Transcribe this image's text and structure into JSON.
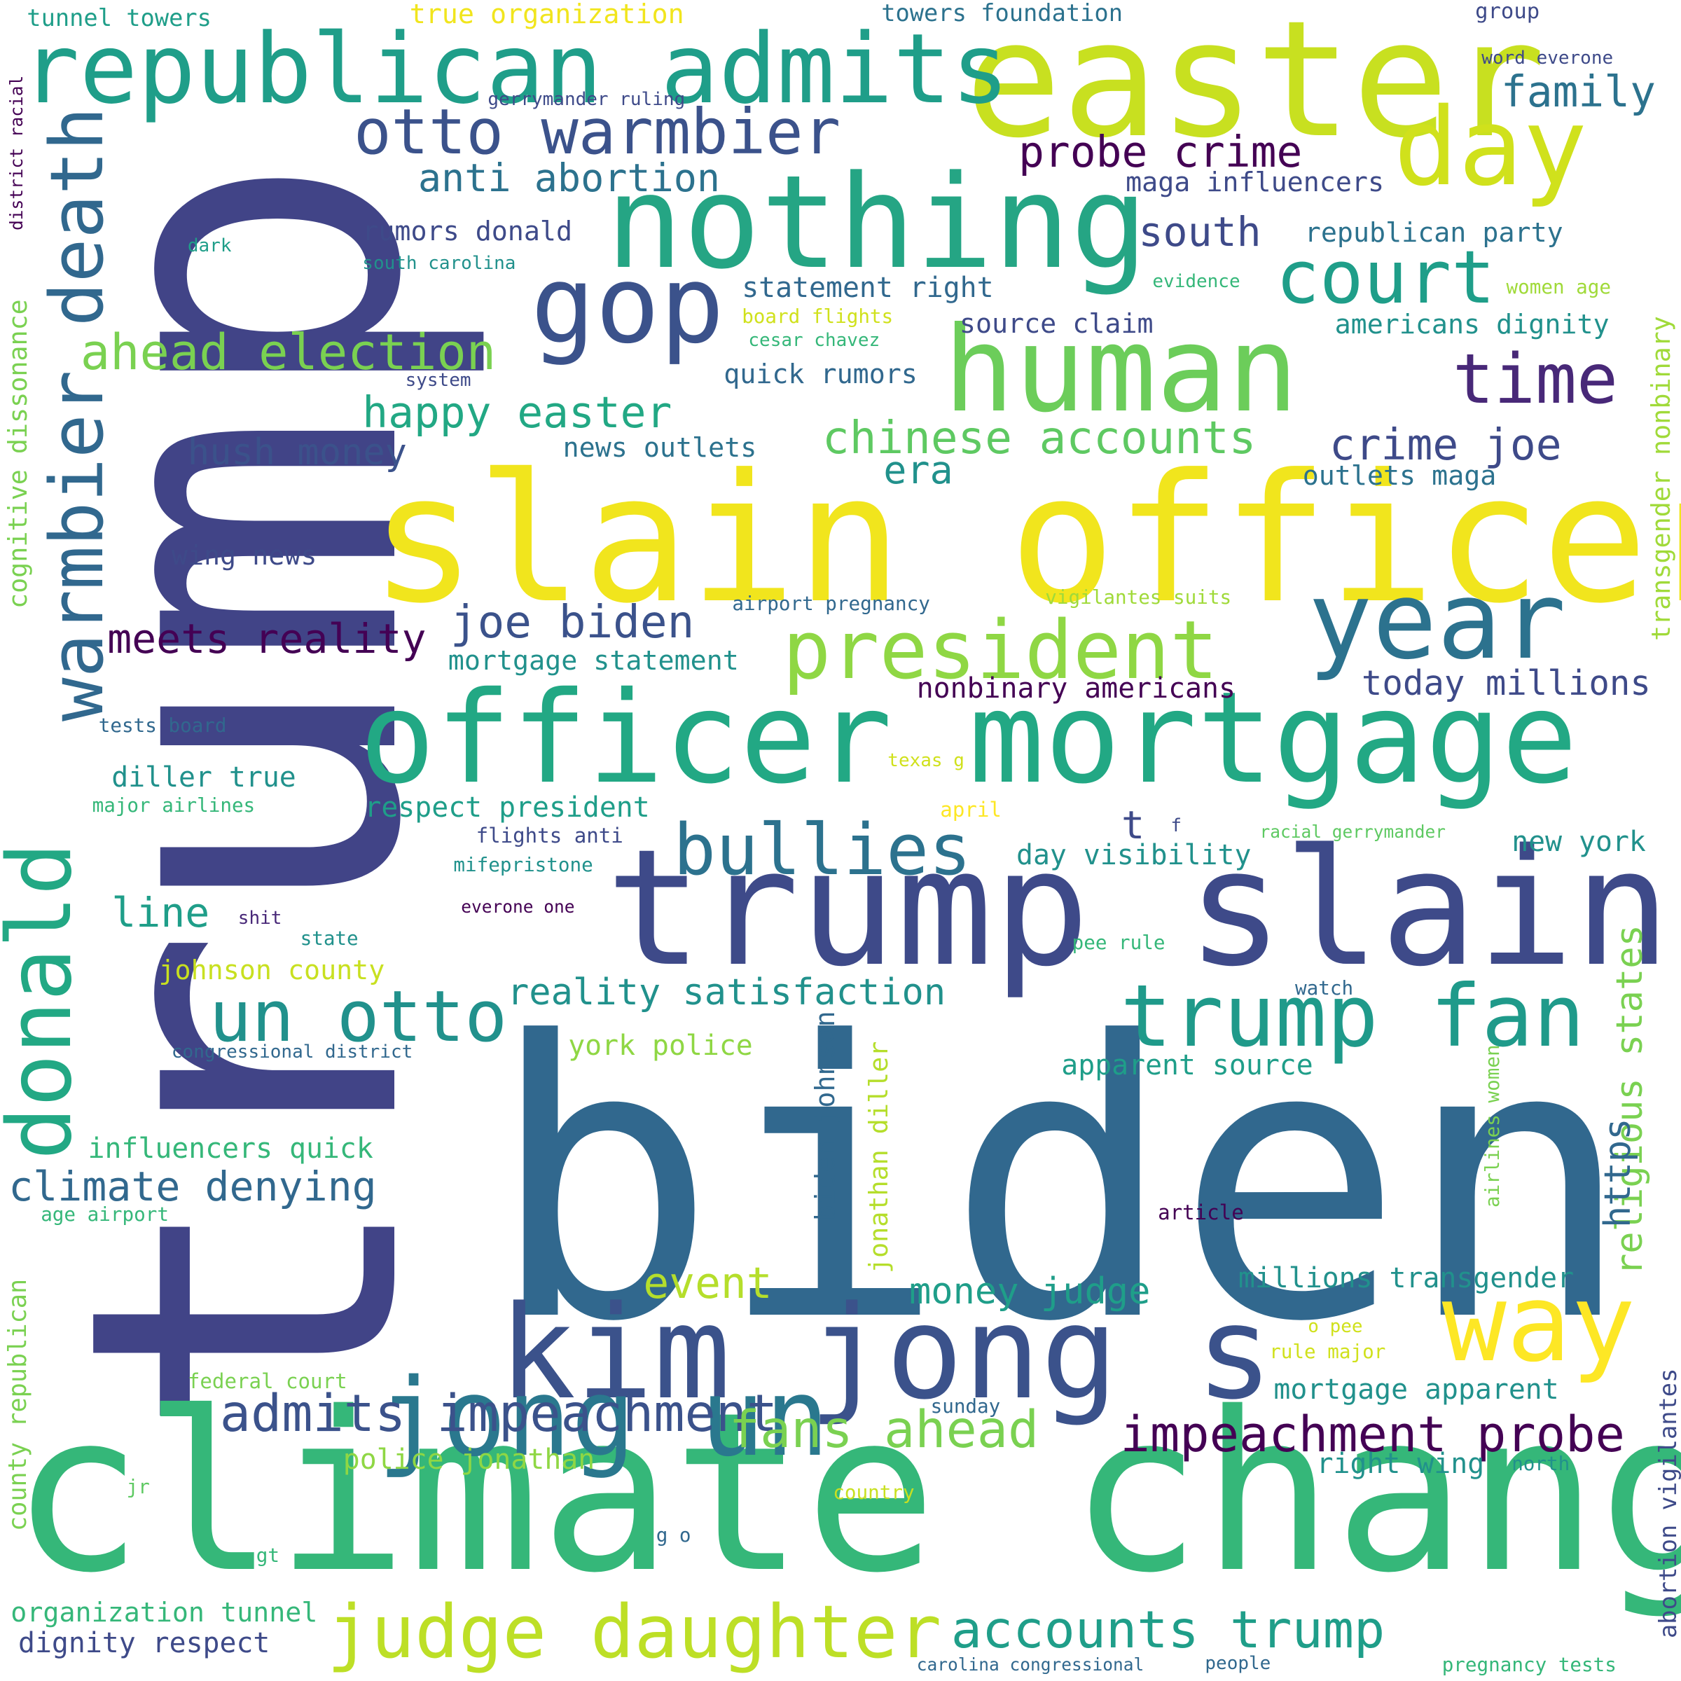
{
  "word_cloud": {
    "words": [
      {
        "text": "trump",
        "color": "#414487"
      },
      {
        "text": "biden",
        "color": "#31688e"
      },
      {
        "text": "climate change",
        "color": "#35b779"
      },
      {
        "text": "slain officer",
        "color": "#f1e51d"
      },
      {
        "text": "easter",
        "color": "#c8e020"
      },
      {
        "text": "nothing",
        "color": "#25a584"
      },
      {
        "text": "officer mortgage",
        "color": "#22a884"
      },
      {
        "text": "trump slain",
        "color": "#3e4a89"
      },
      {
        "text": "human",
        "color": "#6ccd5a"
      },
      {
        "text": "kim jong s",
        "color": "#3b528b"
      },
      {
        "text": "jong un",
        "color": "#2a788e"
      },
      {
        "text": "republican admits",
        "color": "#1f9e89"
      },
      {
        "text": "day",
        "color": "#d0e11c"
      },
      {
        "text": "gop",
        "color": "#3b528b"
      },
      {
        "text": "year",
        "color": "#2c728e"
      },
      {
        "text": "donald",
        "color": "#22a884"
      },
      {
        "text": "warmbier death",
        "color": "#31688e"
      },
      {
        "text": "way",
        "color": "#fde725"
      },
      {
        "text": "president",
        "color": "#8fd744"
      },
      {
        "text": "trump fan",
        "color": "#1f9a8a"
      },
      {
        "text": "judge daughter",
        "color": "#bddf26"
      },
      {
        "text": "court",
        "color": "#1f9e89"
      },
      {
        "text": "otto warmbier",
        "color": "#3b528b"
      },
      {
        "text": "bullies",
        "color": "#2c728e"
      },
      {
        "text": "un otto",
        "color": "#21918c"
      },
      {
        "text": "time",
        "color": "#482878"
      },
      {
        "text": "impeachment probe",
        "color": "#440154"
      },
      {
        "text": "admits impeachment",
        "color": "#3b528b"
      },
      {
        "text": "accounts trump",
        "color": "#1f9e89"
      },
      {
        "text": "fans ahead",
        "color": "#7ad151"
      },
      {
        "text": "ahead election",
        "color": "#7ad151"
      },
      {
        "text": "chinese accounts",
        "color": "#5ec962"
      },
      {
        "text": "joe biden",
        "color": "#3b528b"
      },
      {
        "text": "happy easter",
        "color": "#22a884"
      },
      {
        "text": "probe crime",
        "color": "#440154"
      },
      {
        "text": "crime joe",
        "color": "#3e4a89"
      },
      {
        "text": "climate denying",
        "color": "#31688e"
      },
      {
        "text": "meets reality",
        "color": "#440154"
      },
      {
        "text": "reality satisfaction",
        "color": "#21918c"
      },
      {
        "text": "anti abortion",
        "color": "#2c728e"
      },
      {
        "text": "south",
        "color": "#3e4a89"
      },
      {
        "text": "religious states",
        "color": "#7ad151"
      },
      {
        "text": "https",
        "color": "#31688e"
      },
      {
        "text": "event",
        "color": "#b5de2b"
      },
      {
        "text": "money judge",
        "color": "#1f9e89"
      },
      {
        "text": "line",
        "color": "#1f9e89"
      },
      {
        "text": "hush money",
        "color": "#3b528b"
      },
      {
        "text": "family",
        "color": "#2c728e"
      },
      {
        "text": "today millions",
        "color": "#3e4a89"
      },
      {
        "text": "era",
        "color": "#21918c"
      },
      {
        "text": "t",
        "color": "#3e4a89"
      },
      {
        "text": "millions transgender",
        "color": "#21918c"
      },
      {
        "text": "influencers quick",
        "color": "#35b779"
      },
      {
        "text": "police jonathan",
        "color": "#8fd744"
      },
      {
        "text": "right wing",
        "color": "#21918c"
      },
      {
        "text": "nonbinary americans",
        "color": "#440154"
      },
      {
        "text": "mortgage statement",
        "color": "#21918c"
      },
      {
        "text": "diller true",
        "color": "#21918c"
      },
      {
        "text": "respect president",
        "color": "#1f9e89"
      },
      {
        "text": "day visibility",
        "color": "#21918c"
      },
      {
        "text": "new york",
        "color": "#21918c"
      },
      {
        "text": "mortgage apparent",
        "color": "#21918c"
      },
      {
        "text": "dignity respect",
        "color": "#3e4a89"
      },
      {
        "text": "apparent source",
        "color": "#1f9e89"
      },
      {
        "text": "york police",
        "color": "#8fd744"
      },
      {
        "text": "statement right",
        "color": "#31688e"
      },
      {
        "text": "quick rumors",
        "color": "#31688e"
      },
      {
        "text": "source claim",
        "color": "#3e4a89"
      },
      {
        "text": "rumors donald",
        "color": "#3e4a89"
      },
      {
        "text": "news outlets",
        "color": "#2c728e"
      },
      {
        "text": "outlets maga",
        "color": "#2c728e"
      },
      {
        "text": "americans dignity",
        "color": "#21918c"
      },
      {
        "text": "maga influencers",
        "color": "#3e4a89"
      },
      {
        "text": "republican party",
        "color": "#2c728e"
      },
      {
        "text": "wing news",
        "color": "#3e4a89"
      },
      {
        "text": "organization tunnel",
        "color": "#35b779"
      },
      {
        "text": "johnson county",
        "color": "#c8e020"
      },
      {
        "text": "cognitive dissonance",
        "color": "#7ad151"
      },
      {
        "text": "county republican",
        "color": "#7ad151"
      },
      {
        "text": "transgender nonbinary",
        "color": "#a0da39"
      },
      {
        "text": "biden johnson",
        "color": "#31688e"
      },
      {
        "text": "jonathan diller",
        "color": "#b5de2b"
      },
      {
        "text": "abortion vigilantes",
        "color": "#3e4a89"
      },
      {
        "text": "airlines women",
        "color": "#7ad151"
      },
      {
        "text": "true organization",
        "color": "#f1e51d"
      },
      {
        "text": "tunnel towers",
        "color": "#1f9e89"
      },
      {
        "text": "towers foundation",
        "color": "#2c728e"
      },
      {
        "text": "group",
        "color": "#3e4a89"
      },
      {
        "text": "word everone",
        "color": "#3e4a89"
      },
      {
        "text": "gerrymander ruling",
        "color": "#3e4a89"
      },
      {
        "text": "district racial",
        "color": "#440154"
      },
      {
        "text": "dark",
        "color": "#1f9e89"
      },
      {
        "text": "south carolina",
        "color": "#21918c"
      },
      {
        "text": "board flights",
        "color": "#d0e11c"
      },
      {
        "text": "cesar chavez",
        "color": "#35b779"
      },
      {
        "text": "system",
        "color": "#3e4a89"
      },
      {
        "text": "evidence",
        "color": "#35b779"
      },
      {
        "text": "women age",
        "color": "#a0da39"
      },
      {
        "text": "airport pregnancy",
        "color": "#31688e"
      },
      {
        "text": "vigilantes suits",
        "color": "#a0da39"
      },
      {
        "text": "tests board",
        "color": "#31688e"
      },
      {
        "text": "texas g",
        "color": "#d0e11c"
      },
      {
        "text": "major airlines",
        "color": "#35b779"
      },
      {
        "text": "april",
        "color": "#fde725"
      },
      {
        "text": "f",
        "color": "#3e4a89"
      },
      {
        "text": "flights anti",
        "color": "#3e4a89"
      },
      {
        "text": "racial gerrymander",
        "color": "#5ec962"
      },
      {
        "text": "mifepristone",
        "color": "#21918c"
      },
      {
        "text": "everone one",
        "color": "#440154"
      },
      {
        "text": "shit",
        "color": "#482878"
      },
      {
        "text": "state",
        "color": "#21918c"
      },
      {
        "text": "pee rule",
        "color": "#35b779"
      },
      {
        "text": "watch",
        "color": "#31688e"
      },
      {
        "text": "congressional district",
        "color": "#31688e"
      },
      {
        "text": "age airport",
        "color": "#35b779"
      },
      {
        "text": "article",
        "color": "#440154"
      },
      {
        "text": "o pee",
        "color": "#d0e11c"
      },
      {
        "text": "rule major",
        "color": "#d0e11c"
      },
      {
        "text": "federal court",
        "color": "#7ad151"
      },
      {
        "text": "sunday",
        "color": "#31688e"
      },
      {
        "text": "north",
        "color": "#21918c"
      },
      {
        "text": "jr",
        "color": "#5ec962"
      },
      {
        "text": "country",
        "color": "#c8e020"
      },
      {
        "text": "g o",
        "color": "#31688e"
      },
      {
        "text": "gt",
        "color": "#35b779"
      },
      {
        "text": "carolina congressional",
        "color": "#31688e"
      },
      {
        "text": "people",
        "color": "#31688e"
      },
      {
        "text": "pregnancy tests",
        "color": "#35b779"
      }
    ]
  }
}
